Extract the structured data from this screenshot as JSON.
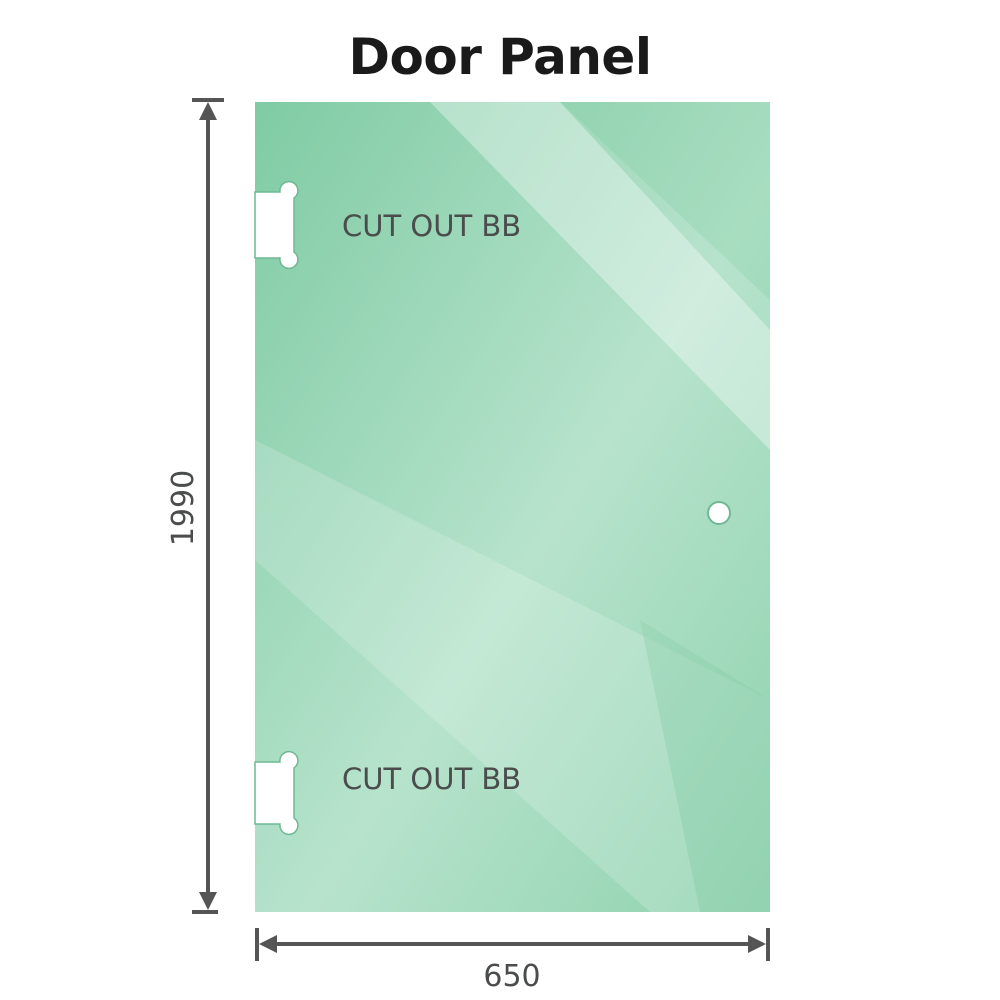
{
  "title": "Door Panel",
  "panel": {
    "cutout_labels": [
      "CUT OUT BB",
      "CUT OUT BB"
    ],
    "glass_color": "#86cfa9"
  },
  "dimensions": {
    "height": "1990",
    "width": "650",
    "line_color": "#555555"
  }
}
